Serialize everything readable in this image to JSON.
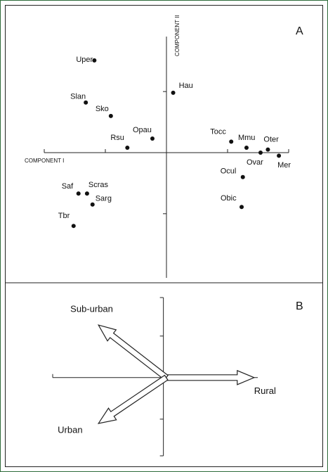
{
  "chart_data": [
    {
      "type": "scatter",
      "panel": "A",
      "xlabel": "COMPONENT I",
      "ylabel": "COMPONENT II",
      "xlim": [
        -2,
        2
      ],
      "ylim": [
        -2.05,
        1.9
      ],
      "xticks": [
        -2,
        -1,
        1,
        2
      ],
      "yticks": [
        1,
        -1
      ],
      "labels": [
        "Uper",
        "Slan",
        "Sko",
        "Rsu",
        "Opau",
        "Hau",
        "Tocc",
        "Mmu",
        "Oter",
        "Ovar",
        "Mer",
        "Ocul",
        "Obic",
        "Saf",
        "Scras",
        "Sarg",
        "Tbr"
      ],
      "x": [
        -1.18,
        -1.32,
        -0.91,
        -0.64,
        -0.23,
        0.11,
        1.06,
        1.31,
        1.66,
        1.54,
        1.84,
        1.25,
        1.23,
        -1.44,
        -1.3,
        -1.21,
        -1.52
      ],
      "y": [
        1.51,
        0.82,
        0.6,
        0.08,
        0.23,
        0.98,
        0.18,
        0.08,
        0.05,
        0.0,
        -0.05,
        -0.4,
        -0.89,
        -0.67,
        -0.67,
        -0.85,
        -1.2
      ],
      "color": "#111111"
    },
    {
      "type": "biplot",
      "panel": "B",
      "xlim": [
        -1.86,
        1.5
      ],
      "ylim": [
        -1.28,
        1.31
      ],
      "yticks": [
        0.68,
        -0.68
      ],
      "vectors": [
        {
          "label": "Rural",
          "x": 1.44,
          "y": 0
        },
        {
          "label": "Sub-urban",
          "x": -1.11,
          "y": 0.86
        },
        {
          "label": "Urban",
          "x": -1.11,
          "y": -0.75
        }
      ]
    }
  ]
}
